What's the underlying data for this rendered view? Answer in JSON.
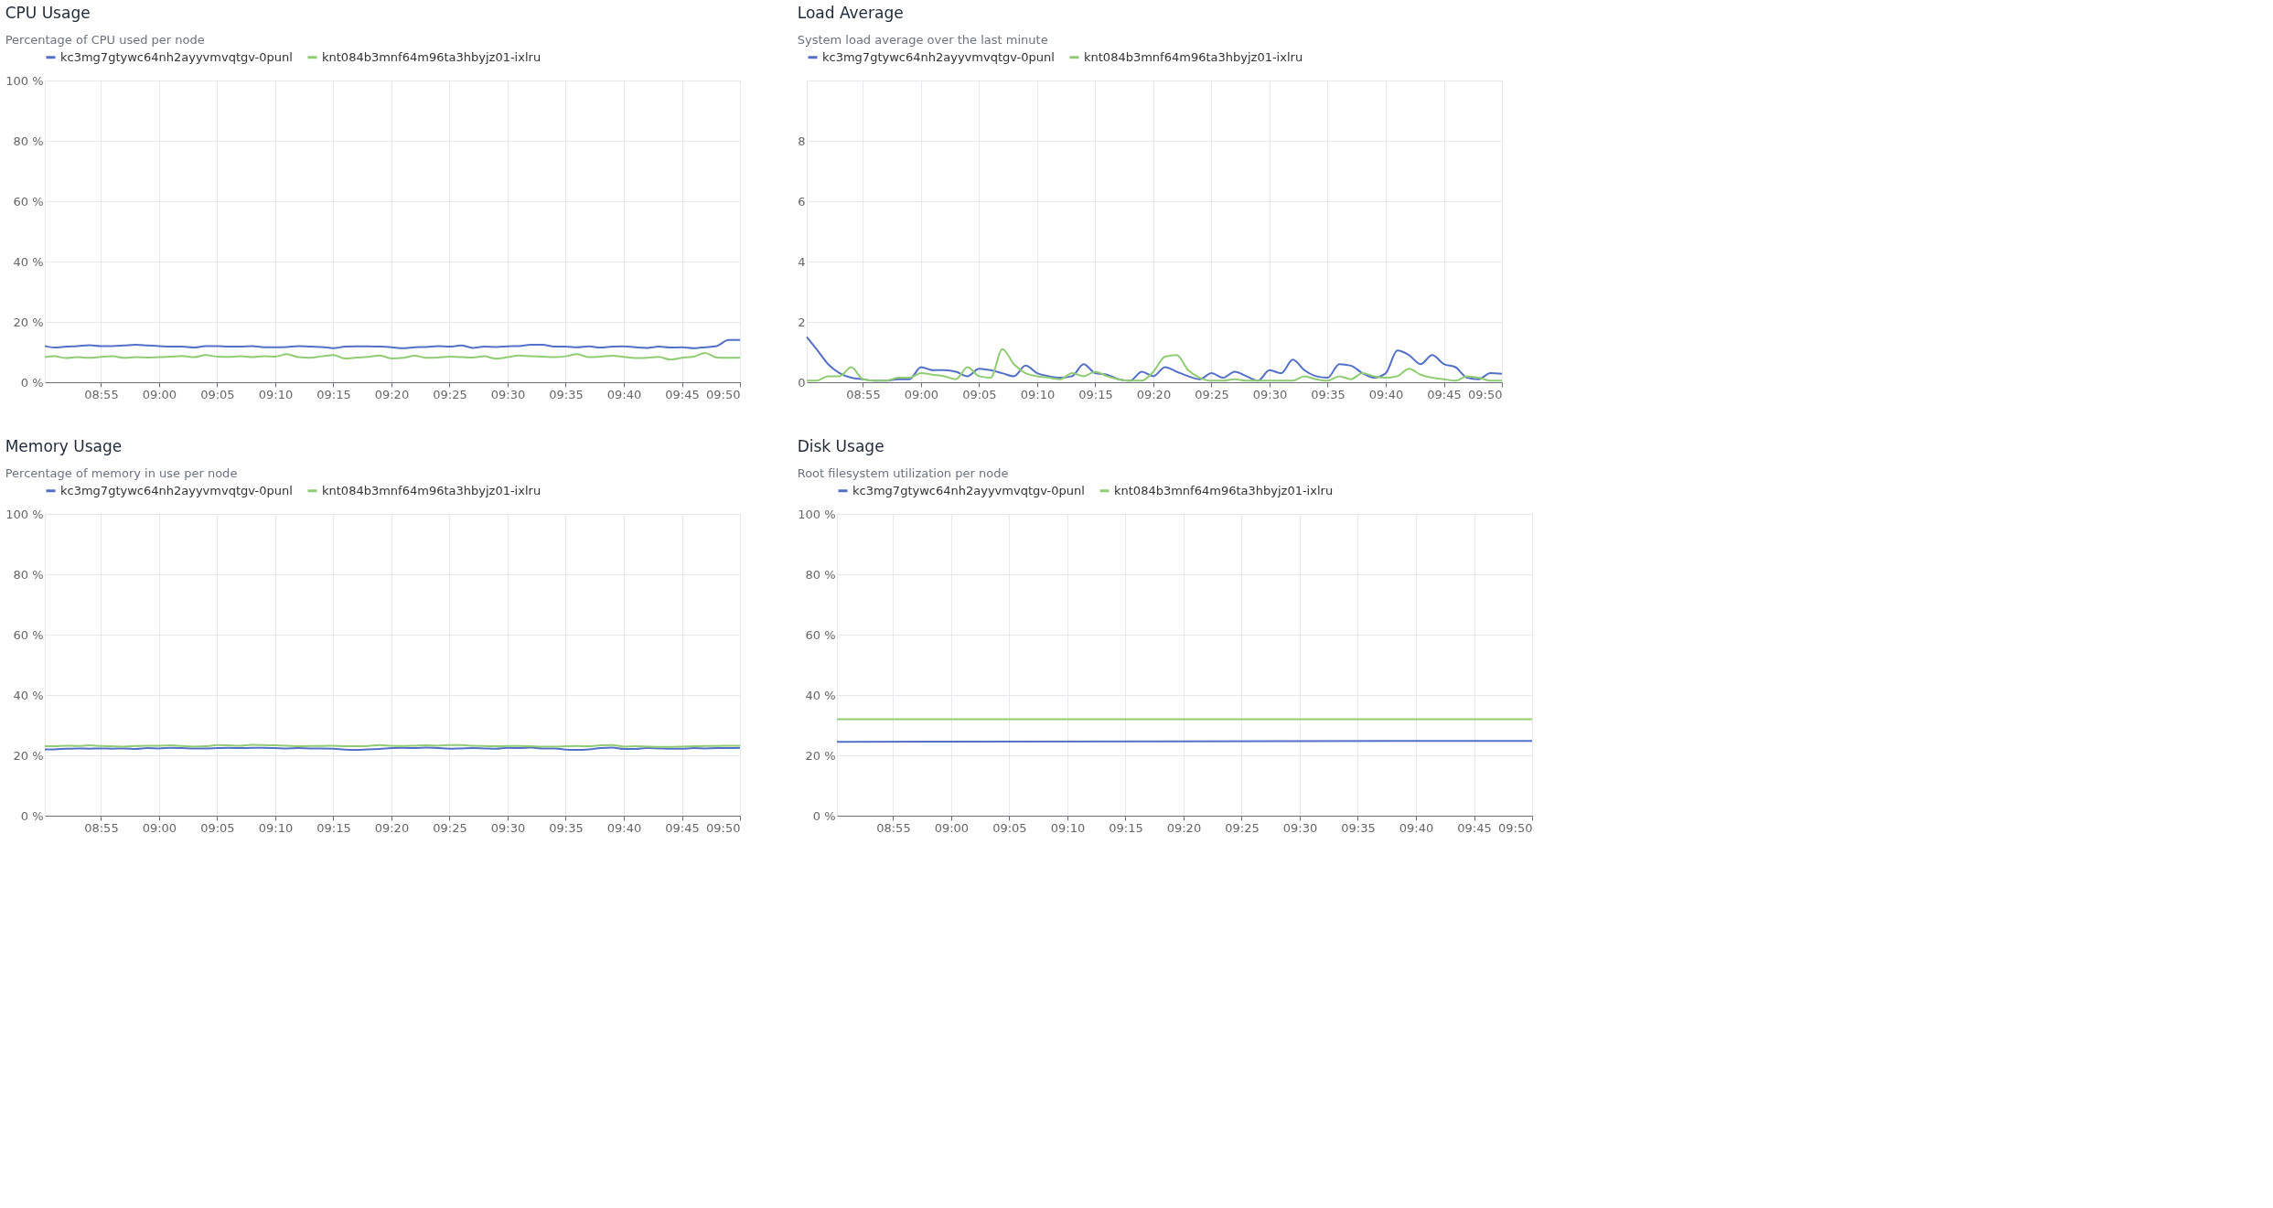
{
  "chart_data": [
    {
      "type": "line",
      "title": "CPU Usage",
      "subtitle": "Percentage of CPU used per node",
      "legend": "top",
      "grid": true,
      "x": [
        8.8361,
        8.85,
        8.8667,
        8.8833,
        8.9,
        8.9167,
        8.9333,
        8.95,
        8.9667,
        8.9833,
        9.0,
        9.0167,
        9.0333,
        9.05,
        9.0667,
        9.0833,
        9.1,
        9.1167,
        9.1333,
        9.15,
        9.1667,
        9.1833,
        9.2,
        9.2167,
        9.2333,
        9.25,
        9.2667,
        9.2833,
        9.3,
        9.3167,
        9.3333,
        9.35,
        9.3667,
        9.3833,
        9.4,
        9.4167,
        9.4333,
        9.45,
        9.4667,
        9.4833,
        9.5,
        9.5167,
        9.5333,
        9.55,
        9.5667,
        9.5833,
        9.6,
        9.6167,
        9.6333,
        9.65,
        9.6667,
        9.6833,
        9.7,
        9.7167,
        9.7333,
        9.75,
        9.7667,
        9.7833,
        9.8,
        9.8167,
        9.8333
      ],
      "xlim": [
        8.8361,
        9.8333
      ],
      "xticks": [
        {
          "value": 8.9167,
          "label": "08:55"
        },
        {
          "value": 9.0,
          "label": "09:00"
        },
        {
          "value": 9.0833,
          "label": "09:05"
        },
        {
          "value": 9.1667,
          "label": "09:10"
        },
        {
          "value": 9.25,
          "label": "09:15"
        },
        {
          "value": 9.3333,
          "label": "09:20"
        },
        {
          "value": 9.4167,
          "label": "09:25"
        },
        {
          "value": 9.5,
          "label": "09:30"
        },
        {
          "value": 9.5833,
          "label": "09:35"
        },
        {
          "value": 9.6667,
          "label": "09:40"
        },
        {
          "value": 9.75,
          "label": "09:45"
        },
        {
          "value": 9.8333,
          "label": "09:50"
        }
      ],
      "ylim": [
        0,
        100
      ],
      "yticks": [
        {
          "value": 0,
          "label": "0 %"
        },
        {
          "value": 20,
          "label": "20 %"
        },
        {
          "value": 40,
          "label": "40 %"
        },
        {
          "value": 60,
          "label": "60 %"
        },
        {
          "value": 80,
          "label": "80 %"
        },
        {
          "value": 100,
          "label": "100 %"
        }
      ],
      "series": [
        {
          "name": "kc3mg7gtywc64nh2ayyvmvqtgv-0punl",
          "color": "#5470c6",
          "values": [
            12,
            11.5,
            11.8,
            12,
            12.3,
            12,
            12,
            12.2,
            12.4,
            12.2,
            12,
            11.8,
            11.8,
            11.5,
            12,
            12,
            11.8,
            11.8,
            12,
            11.6,
            11.6,
            11.7,
            12,
            11.8,
            11.7,
            11.3,
            11.8,
            11.9,
            11.9,
            11.8,
            11.6,
            11.3,
            11.6,
            11.7,
            12,
            11.8,
            12.2,
            11.4,
            11.8,
            11.7,
            11.9,
            12,
            12.4,
            12.4,
            11.8,
            11.8,
            11.6,
            11.9,
            11.5,
            11.8,
            11.9,
            11.6,
            11.4,
            11.8,
            11.5,
            11.6,
            11.3,
            11.6,
            12,
            14,
            14
          ]
        },
        {
          "name": "knt084b3mnf64m96ta3hbyjz01-ixlru",
          "color": "#91cc75",
          "values": [
            8.3,
            8.6,
            8,
            8.3,
            8.1,
            8.4,
            8.6,
            8.1,
            8.3,
            8.2,
            8.3,
            8.5,
            8.7,
            8.3,
            9,
            8.5,
            8.4,
            8.6,
            8.3,
            8.6,
            8.5,
            9.3,
            8.3,
            8.1,
            8.6,
            9,
            7.9,
            8.2,
            8.4,
            8.9,
            7.9,
            8.1,
            8.8,
            8.1,
            8.2,
            8.5,
            8.3,
            8.2,
            8.6,
            7.8,
            8.3,
            8.9,
            8.6,
            8.5,
            8.3,
            8.6,
            9.3,
            8.3,
            8.5,
            8.8,
            8.4,
            8,
            8.1,
            8.4,
            7.5,
            8.1,
            8.5,
            9.7,
            8.2,
            8.1,
            8.2
          ]
        }
      ]
    },
    {
      "type": "line",
      "title": "Load Average",
      "subtitle": "System load average over the last minute",
      "legend": "top",
      "grid": true,
      "x": [
        8.8361,
        8.85,
        8.8667,
        8.8833,
        8.9,
        8.9167,
        8.9333,
        8.95,
        8.9667,
        8.9833,
        9.0,
        9.0167,
        9.0333,
        9.05,
        9.0667,
        9.0833,
        9.1,
        9.1167,
        9.1333,
        9.15,
        9.1667,
        9.1833,
        9.2,
        9.2167,
        9.2333,
        9.25,
        9.2667,
        9.2833,
        9.3,
        9.3167,
        9.3333,
        9.35,
        9.3667,
        9.3833,
        9.4,
        9.4167,
        9.4333,
        9.45,
        9.4667,
        9.4833,
        9.5,
        9.5167,
        9.5333,
        9.55,
        9.5667,
        9.5833,
        9.6,
        9.6167,
        9.6333,
        9.65,
        9.6667,
        9.6833,
        9.7,
        9.7167,
        9.7333,
        9.75,
        9.7667,
        9.7833,
        9.8,
        9.8167,
        9.8333
      ],
      "xlim": [
        8.8361,
        9.8333
      ],
      "xticks": [
        {
          "value": 8.9167,
          "label": "08:55"
        },
        {
          "value": 9.0,
          "label": "09:00"
        },
        {
          "value": 9.0833,
          "label": "09:05"
        },
        {
          "value": 9.1667,
          "label": "09:10"
        },
        {
          "value": 9.25,
          "label": "09:15"
        },
        {
          "value": 9.3333,
          "label": "09:20"
        },
        {
          "value": 9.4167,
          "label": "09:25"
        },
        {
          "value": 9.5,
          "label": "09:30"
        },
        {
          "value": 9.5833,
          "label": "09:35"
        },
        {
          "value": 9.6667,
          "label": "09:40"
        },
        {
          "value": 9.75,
          "label": "09:45"
        },
        {
          "value": 9.8333,
          "label": "09:50"
        }
      ],
      "ylim": [
        0,
        10
      ],
      "yticks": [
        0,
        2,
        4,
        6,
        8
      ],
      "series": [
        {
          "name": "kc3mg7gtywc64nh2ayyvmvqtgv-0punl",
          "color": "#5470c6",
          "values": [
            1.5,
            1.1,
            0.6,
            0.3,
            0.15,
            0.1,
            0.05,
            0.05,
            0.1,
            0.1,
            0.5,
            0.4,
            0.4,
            0.35,
            0.2,
            0.45,
            0.4,
            0.3,
            0.2,
            0.55,
            0.3,
            0.2,
            0.15,
            0.2,
            0.6,
            0.3,
            0.25,
            0.1,
            0.05,
            0.35,
            0.2,
            0.5,
            0.35,
            0.2,
            0.1,
            0.3,
            0.15,
            0.35,
            0.2,
            0.05,
            0.4,
            0.3,
            0.75,
            0.4,
            0.2,
            0.15,
            0.6,
            0.55,
            0.3,
            0.15,
            0.3,
            1.05,
            0.9,
            0.6,
            0.9,
            0.6,
            0.5,
            0.15,
            0.1,
            0.3,
            0.28
          ]
        },
        {
          "name": "knt084b3mnf64m96ta3hbyjz01-ixlru",
          "color": "#91cc75",
          "values": [
            0.05,
            0.05,
            0.2,
            0.2,
            0.5,
            0.1,
            0.05,
            0.05,
            0.15,
            0.15,
            0.3,
            0.25,
            0.2,
            0.1,
            0.5,
            0.2,
            0.15,
            1.1,
            0.6,
            0.3,
            0.2,
            0.15,
            0.1,
            0.3,
            0.2,
            0.35,
            0.2,
            0.1,
            0.05,
            0.05,
            0.35,
            0.85,
            0.9,
            0.4,
            0.15,
            0.05,
            0.05,
            0.1,
            0.05,
            0.05,
            0.05,
            0.05,
            0.05,
            0.2,
            0.1,
            0.05,
            0.2,
            0.1,
            0.3,
            0.2,
            0.15,
            0.2,
            0.45,
            0.25,
            0.15,
            0.1,
            0.05,
            0.2,
            0.15,
            0.05,
            0.05
          ]
        }
      ]
    },
    {
      "type": "line",
      "title": "Memory Usage",
      "subtitle": "Percentage of memory in use per node",
      "legend": "top",
      "grid": true,
      "x": [
        8.8361,
        8.85,
        8.8667,
        8.8833,
        8.9,
        8.9167,
        8.9333,
        8.95,
        8.9667,
        8.9833,
        9.0,
        9.0167,
        9.0333,
        9.05,
        9.0667,
        9.0833,
        9.1,
        9.1167,
        9.1333,
        9.15,
        9.1667,
        9.1833,
        9.2,
        9.2167,
        9.2333,
        9.25,
        9.2667,
        9.2833,
        9.3,
        9.3167,
        9.3333,
        9.35,
        9.3667,
        9.3833,
        9.4,
        9.4167,
        9.4333,
        9.45,
        9.4667,
        9.4833,
        9.5,
        9.5167,
        9.5333,
        9.55,
        9.5667,
        9.5833,
        9.6,
        9.6167,
        9.6333,
        9.65,
        9.6667,
        9.6833,
        9.7,
        9.7167,
        9.7333,
        9.75,
        9.7667,
        9.7833,
        9.8,
        9.8167,
        9.8333
      ],
      "xlim": [
        8.8361,
        9.8333
      ],
      "xticks": [
        {
          "value": 8.9167,
          "label": "08:55"
        },
        {
          "value": 9.0,
          "label": "09:00"
        },
        {
          "value": 9.0833,
          "label": "09:05"
        },
        {
          "value": 9.1667,
          "label": "09:10"
        },
        {
          "value": 9.25,
          "label": "09:15"
        },
        {
          "value": 9.3333,
          "label": "09:20"
        },
        {
          "value": 9.4167,
          "label": "09:25"
        },
        {
          "value": 9.5,
          "label": "09:30"
        },
        {
          "value": 9.5833,
          "label": "09:35"
        },
        {
          "value": 9.6667,
          "label": "09:40"
        },
        {
          "value": 9.75,
          "label": "09:45"
        },
        {
          "value": 9.8333,
          "label": "09:50"
        }
      ],
      "ylim": [
        0,
        100
      ],
      "yticks": [
        {
          "value": 0,
          "label": "0 %"
        },
        {
          "value": 20,
          "label": "20 %"
        },
        {
          "value": 40,
          "label": "40 %"
        },
        {
          "value": 60,
          "label": "60 %"
        },
        {
          "value": 80,
          "label": "80 %"
        },
        {
          "value": 100,
          "label": "100 %"
        }
      ],
      "series": [
        {
          "name": "kc3mg7gtywc64nh2ayyvmvqtgv-0punl",
          "color": "#5470c6",
          "values": [
            22,
            22,
            22.2,
            22.3,
            22.2,
            22.3,
            22.2,
            22.3,
            22.1,
            22.4,
            22.3,
            22.5,
            22.4,
            22.3,
            22.3,
            22.4,
            22.5,
            22.4,
            22.5,
            22.5,
            22.4,
            22.3,
            22.4,
            22.3,
            22.3,
            22.2,
            21.9,
            21.8,
            22,
            22.1,
            22.4,
            22.5,
            22.4,
            22.6,
            22.4,
            22.2,
            22.3,
            22.4,
            22.3,
            22.2,
            22.5,
            22.4,
            22.6,
            22.3,
            22.3,
            21.9,
            21.8,
            22,
            22.4,
            22.6,
            22.1,
            22.1,
            22.4,
            22.3,
            22.2,
            22.2,
            22.4,
            22.3,
            22.4,
            22.4,
            22.5
          ]
        },
        {
          "name": "knt084b3mnf64m96ta3hbyjz01-ixlru",
          "color": "#91cc75",
          "values": [
            23,
            23,
            23.2,
            23.1,
            23.3,
            23.1,
            23,
            22.9,
            23.1,
            23.2,
            23.2,
            23.3,
            23.1,
            22.9,
            23,
            23.4,
            23.3,
            23.2,
            23.5,
            23.4,
            23.3,
            23.2,
            23,
            23.1,
            23.1,
            23.2,
            23,
            23,
            23.1,
            23.4,
            23.2,
            23.1,
            23.2,
            23.3,
            23.2,
            23.4,
            23.4,
            23.2,
            23.1,
            23,
            23.1,
            23.1,
            23,
            22.9,
            22.9,
            23,
            23.1,
            23,
            23.3,
            23.4,
            22.9,
            23,
            22.9,
            22.8,
            22.8,
            22.9,
            23,
            23.1,
            23.1,
            23.2,
            23.2
          ]
        }
      ]
    },
    {
      "type": "line",
      "title": "Disk Usage",
      "subtitle": "Root filesystem utilization per node",
      "legend": "top",
      "grid": true,
      "x": [
        8.8361,
        9.8333
      ],
      "xlim": [
        8.8361,
        9.8333
      ],
      "xticks": [
        {
          "value": 8.9167,
          "label": "08:55"
        },
        {
          "value": 9.0,
          "label": "09:00"
        },
        {
          "value": 9.0833,
          "label": "09:05"
        },
        {
          "value": 9.1667,
          "label": "09:10"
        },
        {
          "value": 9.25,
          "label": "09:15"
        },
        {
          "value": 9.3333,
          "label": "09:20"
        },
        {
          "value": 9.4167,
          "label": "09:25"
        },
        {
          "value": 9.5,
          "label": "09:30"
        },
        {
          "value": 9.5833,
          "label": "09:35"
        },
        {
          "value": 9.6667,
          "label": "09:40"
        },
        {
          "value": 9.75,
          "label": "09:45"
        },
        {
          "value": 9.8333,
          "label": "09:50"
        }
      ],
      "ylim": [
        0,
        100
      ],
      "yticks": [
        {
          "value": 0,
          "label": "0 %"
        },
        {
          "value": 20,
          "label": "20 %"
        },
        {
          "value": 40,
          "label": "40 %"
        },
        {
          "value": 60,
          "label": "60 %"
        },
        {
          "value": 80,
          "label": "80 %"
        },
        {
          "value": 100,
          "label": "100 %"
        }
      ],
      "series": [
        {
          "name": "kc3mg7gtywc64nh2ayyvmvqtgv-0punl",
          "color": "#5470c6",
          "values": [
            24.5,
            24.8
          ]
        },
        {
          "name": "knt084b3mnf64m96ta3hbyjz01-ixlru",
          "color": "#91cc75",
          "values": [
            32,
            32
          ]
        }
      ]
    }
  ]
}
